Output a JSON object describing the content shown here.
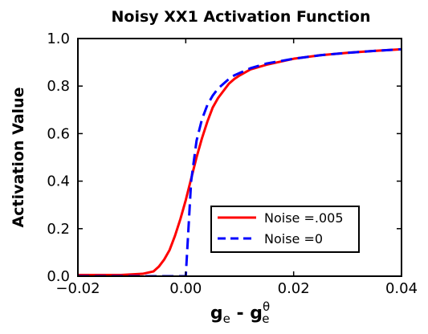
{
  "chart_data": {
    "type": "line",
    "title": "Noisy XX1 Activation Function",
    "ylabel": "Activation Value",
    "xlabel": {
      "main": "g",
      "main_sub": "e",
      "sep": " - ",
      "theta_base": "g",
      "theta_sup": "θ",
      "theta_sub": "e"
    },
    "xlim": [
      -0.02,
      0.04
    ],
    "ylim": [
      0,
      1
    ],
    "xticks": [
      -0.02,
      0.0,
      0.02,
      0.04
    ],
    "xtick_labels": [
      "−0.02",
      "0.00",
      "0.02",
      "0.04"
    ],
    "yticks": [
      0,
      0.2,
      0.4,
      0.6,
      0.8,
      1.0
    ],
    "ytick_labels": [
      "0.0",
      "0.2",
      "0.4",
      "0.6",
      "0.8",
      "1.0"
    ],
    "legend_position": "bottom-right",
    "grid": false,
    "series": [
      {
        "name": "Noise =.005",
        "color": "#ff0000",
        "dash": "solid",
        "x": [
          -0.02,
          -0.012,
          -0.008,
          -0.006,
          -0.005,
          -0.004,
          -0.003,
          -0.002,
          -0.001,
          0.0,
          0.001,
          0.002,
          0.003,
          0.004,
          0.005,
          0.006,
          0.007,
          0.008,
          0.009,
          0.01,
          0.012,
          0.015,
          0.02,
          0.025,
          0.03,
          0.035,
          0.04
        ],
        "y": [
          0.005,
          0.005,
          0.01,
          0.02,
          0.04,
          0.07,
          0.11,
          0.17,
          0.24,
          0.32,
          0.41,
          0.5,
          0.58,
          0.65,
          0.71,
          0.75,
          0.78,
          0.81,
          0.83,
          0.845,
          0.87,
          0.89,
          0.915,
          0.93,
          0.94,
          0.948,
          0.955
        ]
      },
      {
        "name": "Noise =0",
        "color": "#0000ff",
        "dash": "dashed",
        "x": [
          -0.02,
          0.0,
          0.0,
          0.001,
          0.002,
          0.003,
          0.004,
          0.005,
          0.006,
          0.007,
          0.008,
          0.009,
          0.01,
          0.012,
          0.015,
          0.02,
          0.025,
          0.03,
          0.035,
          0.04
        ],
        "y": [
          0.0,
          0.0,
          0.0,
          0.4,
          0.57,
          0.66,
          0.72,
          0.76,
          0.79,
          0.81,
          0.83,
          0.845,
          0.855,
          0.875,
          0.895,
          0.915,
          0.93,
          0.94,
          0.948,
          0.955
        ]
      }
    ]
  }
}
